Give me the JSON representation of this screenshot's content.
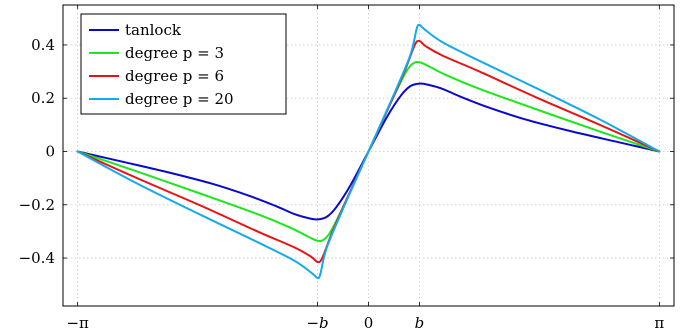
{
  "chart_data": {
    "type": "line",
    "title": "",
    "xlabel": "",
    "ylabel": "",
    "xlim": [
      -3.3,
      3.3
    ],
    "ylim": [
      -0.58,
      0.55
    ],
    "grid": true,
    "legend_position": "top-left",
    "x_ticks": [
      {
        "value": -3.14159,
        "label": "−π",
        "math": false
      },
      {
        "value": -0.55,
        "label": "−b",
        "math": true
      },
      {
        "value": 0,
        "label": "0",
        "math": false
      },
      {
        "value": 0.55,
        "label": "b",
        "math": true
      },
      {
        "value": 3.14159,
        "label": "π",
        "math": false
      }
    ],
    "y_ticks": [
      {
        "value": 0.4,
        "label": "0.4"
      },
      {
        "value": 0.2,
        "label": "0.2"
      },
      {
        "value": 0,
        "label": "0"
      },
      {
        "value": -0.2,
        "label": "−0.2"
      },
      {
        "value": -0.4,
        "label": "−0.4"
      }
    ],
    "series": [
      {
        "name": "tanlock",
        "color": "#0a0ac8",
        "points": [
          [
            -3.14159,
            0
          ],
          [
            -2.7,
            -0.035
          ],
          [
            -2.2,
            -0.075
          ],
          [
            -1.7,
            -0.12
          ],
          [
            -1.3,
            -0.165
          ],
          [
            -1.0,
            -0.205
          ],
          [
            -0.8,
            -0.235
          ],
          [
            -0.65,
            -0.25
          ],
          [
            -0.55,
            -0.255
          ],
          [
            -0.45,
            -0.245
          ],
          [
            -0.35,
            -0.21
          ],
          [
            -0.2,
            -0.13
          ],
          [
            0,
            0
          ],
          [
            0.2,
            0.13
          ],
          [
            0.35,
            0.21
          ],
          [
            0.45,
            0.245
          ],
          [
            0.55,
            0.255
          ],
          [
            0.65,
            0.25
          ],
          [
            0.8,
            0.235
          ],
          [
            1.0,
            0.205
          ],
          [
            1.3,
            0.165
          ],
          [
            1.7,
            0.12
          ],
          [
            2.2,
            0.075
          ],
          [
            2.7,
            0.035
          ],
          [
            3.14159,
            0
          ]
        ]
      },
      {
        "name": "degree p = 3",
        "color": "#1ee61e",
        "points": [
          [
            -3.14159,
            0
          ],
          [
            -2.5,
            -0.075
          ],
          [
            -1.8,
            -0.16
          ],
          [
            -1.2,
            -0.235
          ],
          [
            -0.85,
            -0.285
          ],
          [
            -0.65,
            -0.32
          ],
          [
            -0.55,
            -0.335
          ],
          [
            -0.48,
            -0.33
          ],
          [
            -0.4,
            -0.295
          ],
          [
            -0.25,
            -0.19
          ],
          [
            0,
            0
          ],
          [
            0.25,
            0.19
          ],
          [
            0.4,
            0.295
          ],
          [
            0.48,
            0.33
          ],
          [
            0.55,
            0.335
          ],
          [
            0.65,
            0.32
          ],
          [
            0.85,
            0.285
          ],
          [
            1.2,
            0.235
          ],
          [
            1.8,
            0.16
          ],
          [
            2.5,
            0.075
          ],
          [
            3.14159,
            0
          ]
        ]
      },
      {
        "name": "degree p = 6",
        "color": "#e61414",
        "points": [
          [
            -3.14159,
            0
          ],
          [
            -2.5,
            -0.1
          ],
          [
            -1.8,
            -0.205
          ],
          [
            -1.2,
            -0.3
          ],
          [
            -0.8,
            -0.36
          ],
          [
            -0.62,
            -0.395
          ],
          [
            -0.55,
            -0.415
          ],
          [
            -0.5,
            -0.4
          ],
          [
            -0.4,
            -0.31
          ],
          [
            -0.25,
            -0.19
          ],
          [
            0,
            0
          ],
          [
            0.25,
            0.19
          ],
          [
            0.4,
            0.31
          ],
          [
            0.5,
            0.4
          ],
          [
            0.55,
            0.415
          ],
          [
            0.62,
            0.395
          ],
          [
            0.8,
            0.36
          ],
          [
            1.2,
            0.3
          ],
          [
            1.8,
            0.205
          ],
          [
            2.5,
            0.1
          ],
          [
            3.14159,
            0
          ]
        ]
      },
      {
        "name": "degree p = 20",
        "color": "#14aaeb",
        "points": [
          [
            -3.14159,
            0
          ],
          [
            -2.5,
            -0.12
          ],
          [
            -1.8,
            -0.24
          ],
          [
            -1.2,
            -0.34
          ],
          [
            -0.8,
            -0.41
          ],
          [
            -0.6,
            -0.46
          ],
          [
            -0.55,
            -0.475
          ],
          [
            -0.52,
            -0.46
          ],
          [
            -0.45,
            -0.36
          ],
          [
            -0.25,
            -0.195
          ],
          [
            0,
            0
          ],
          [
            0.25,
            0.195
          ],
          [
            0.45,
            0.36
          ],
          [
            0.52,
            0.46
          ],
          [
            0.55,
            0.475
          ],
          [
            0.6,
            0.46
          ],
          [
            0.8,
            0.41
          ],
          [
            1.2,
            0.34
          ],
          [
            1.8,
            0.24
          ],
          [
            2.5,
            0.12
          ],
          [
            3.14159,
            0
          ]
        ]
      }
    ]
  }
}
